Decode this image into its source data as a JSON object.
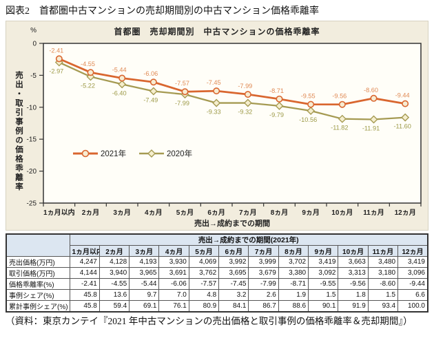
{
  "figure_title": "図表2　首都圏中古マンションの売却期間別の中古マンション価格乖離率",
  "chart_data": {
    "type": "line",
    "title": "首都圏　売却期間別　中古マンションの価格乖離率",
    "y_unit": "%",
    "ylabel": "売出・取引事例の価格乖離率",
    "xlabel": "売出→成約までの期間",
    "ylim": [
      -25,
      0
    ],
    "yticks": [
      0,
      -5,
      -10,
      -15,
      -20,
      -25
    ],
    "grid": false,
    "legend_position": "inside-lower-left",
    "categories": [
      "1ヵ月以内",
      "2ヵ月",
      "3ヵ月",
      "4ヵ月",
      "5ヵ月",
      "6ヵ月",
      "7ヵ月",
      "8ヵ月",
      "9ヵ月",
      "10ヵ月",
      "11ヵ月",
      "12ヵ月"
    ],
    "series": [
      {
        "name": "2021年",
        "color": "#d9662f",
        "label_color": "#e08a55",
        "marker": "circle",
        "marker_fill": "#f7ecd2",
        "values": [
          -2.41,
          -4.55,
          -5.44,
          -6.06,
          -7.57,
          -7.45,
          -7.99,
          -8.71,
          -9.55,
          -9.56,
          -8.6,
          -9.44
        ]
      },
      {
        "name": "2020年",
        "color": "#a59a52",
        "label_color": "#9d9a48",
        "marker": "diamond",
        "marker_fill": "#f5eecd",
        "values": [
          -2.97,
          -5.22,
          -6.4,
          -7.49,
          -7.99,
          -9.33,
          -9.32,
          -9.79,
          -10.56,
          -11.82,
          -11.91,
          -11.6
        ]
      }
    ],
    "colors": {
      "panel_bg": "#f2edde",
      "plot_bg": "#fffef8",
      "axis": "#333333",
      "table_header_bg": "#dce6f1"
    }
  },
  "table": {
    "span_header": "売出→成約までの期間(2021年)",
    "columns": [
      "1ヵ月以内",
      "2ヵ月",
      "3ヵ月",
      "4ヵ月",
      "5ヵ月",
      "6ヵ月",
      "7ヵ月",
      "8ヵ月",
      "9ヵ月",
      "10ヵ月",
      "11ヵ月",
      "12ヵ月"
    ],
    "rows": [
      {
        "label": "売出価格(万円)",
        "values": [
          "4,247",
          "4,128",
          "4,193",
          "3,930",
          "4,069",
          "3,992",
          "3,999",
          "3,702",
          "3,419",
          "3,663",
          "3,480",
          "3,419"
        ]
      },
      {
        "label": "取引価格(万円)",
        "values": [
          "4,144",
          "3,940",
          "3,965",
          "3,691",
          "3,762",
          "3,695",
          "3,679",
          "3,380",
          "3,092",
          "3,313",
          "3,180",
          "3,096"
        ]
      },
      {
        "label": "価格乖離率(%)",
        "values": [
          "-2.41",
          "-4.55",
          "-5.44",
          "-6.06",
          "-7.57",
          "-7.45",
          "-7.99",
          "-8.71",
          "-9.55",
          "-9.56",
          "-8.60",
          "-9.44"
        ]
      },
      {
        "label": "事例シェア(%)",
        "values": [
          "45.8",
          "13.6",
          "9.7",
          "7.0",
          "4.8",
          "3.2",
          "2.6",
          "1.9",
          "1.5",
          "1.8",
          "1.5",
          "6.6"
        ]
      },
      {
        "label": "累計事例シェア(%)",
        "values": [
          "45.8",
          "59.4",
          "69.1",
          "76.1",
          "80.9",
          "84.1",
          "86.7",
          "88.6",
          "90.1",
          "91.9",
          "93.4",
          "100.0"
        ]
      }
    ]
  },
  "source_note": "（資料：東京カンテイ『2021 年中古マンションの売出価格と取引事例の価格乖離率＆売却期間』）"
}
